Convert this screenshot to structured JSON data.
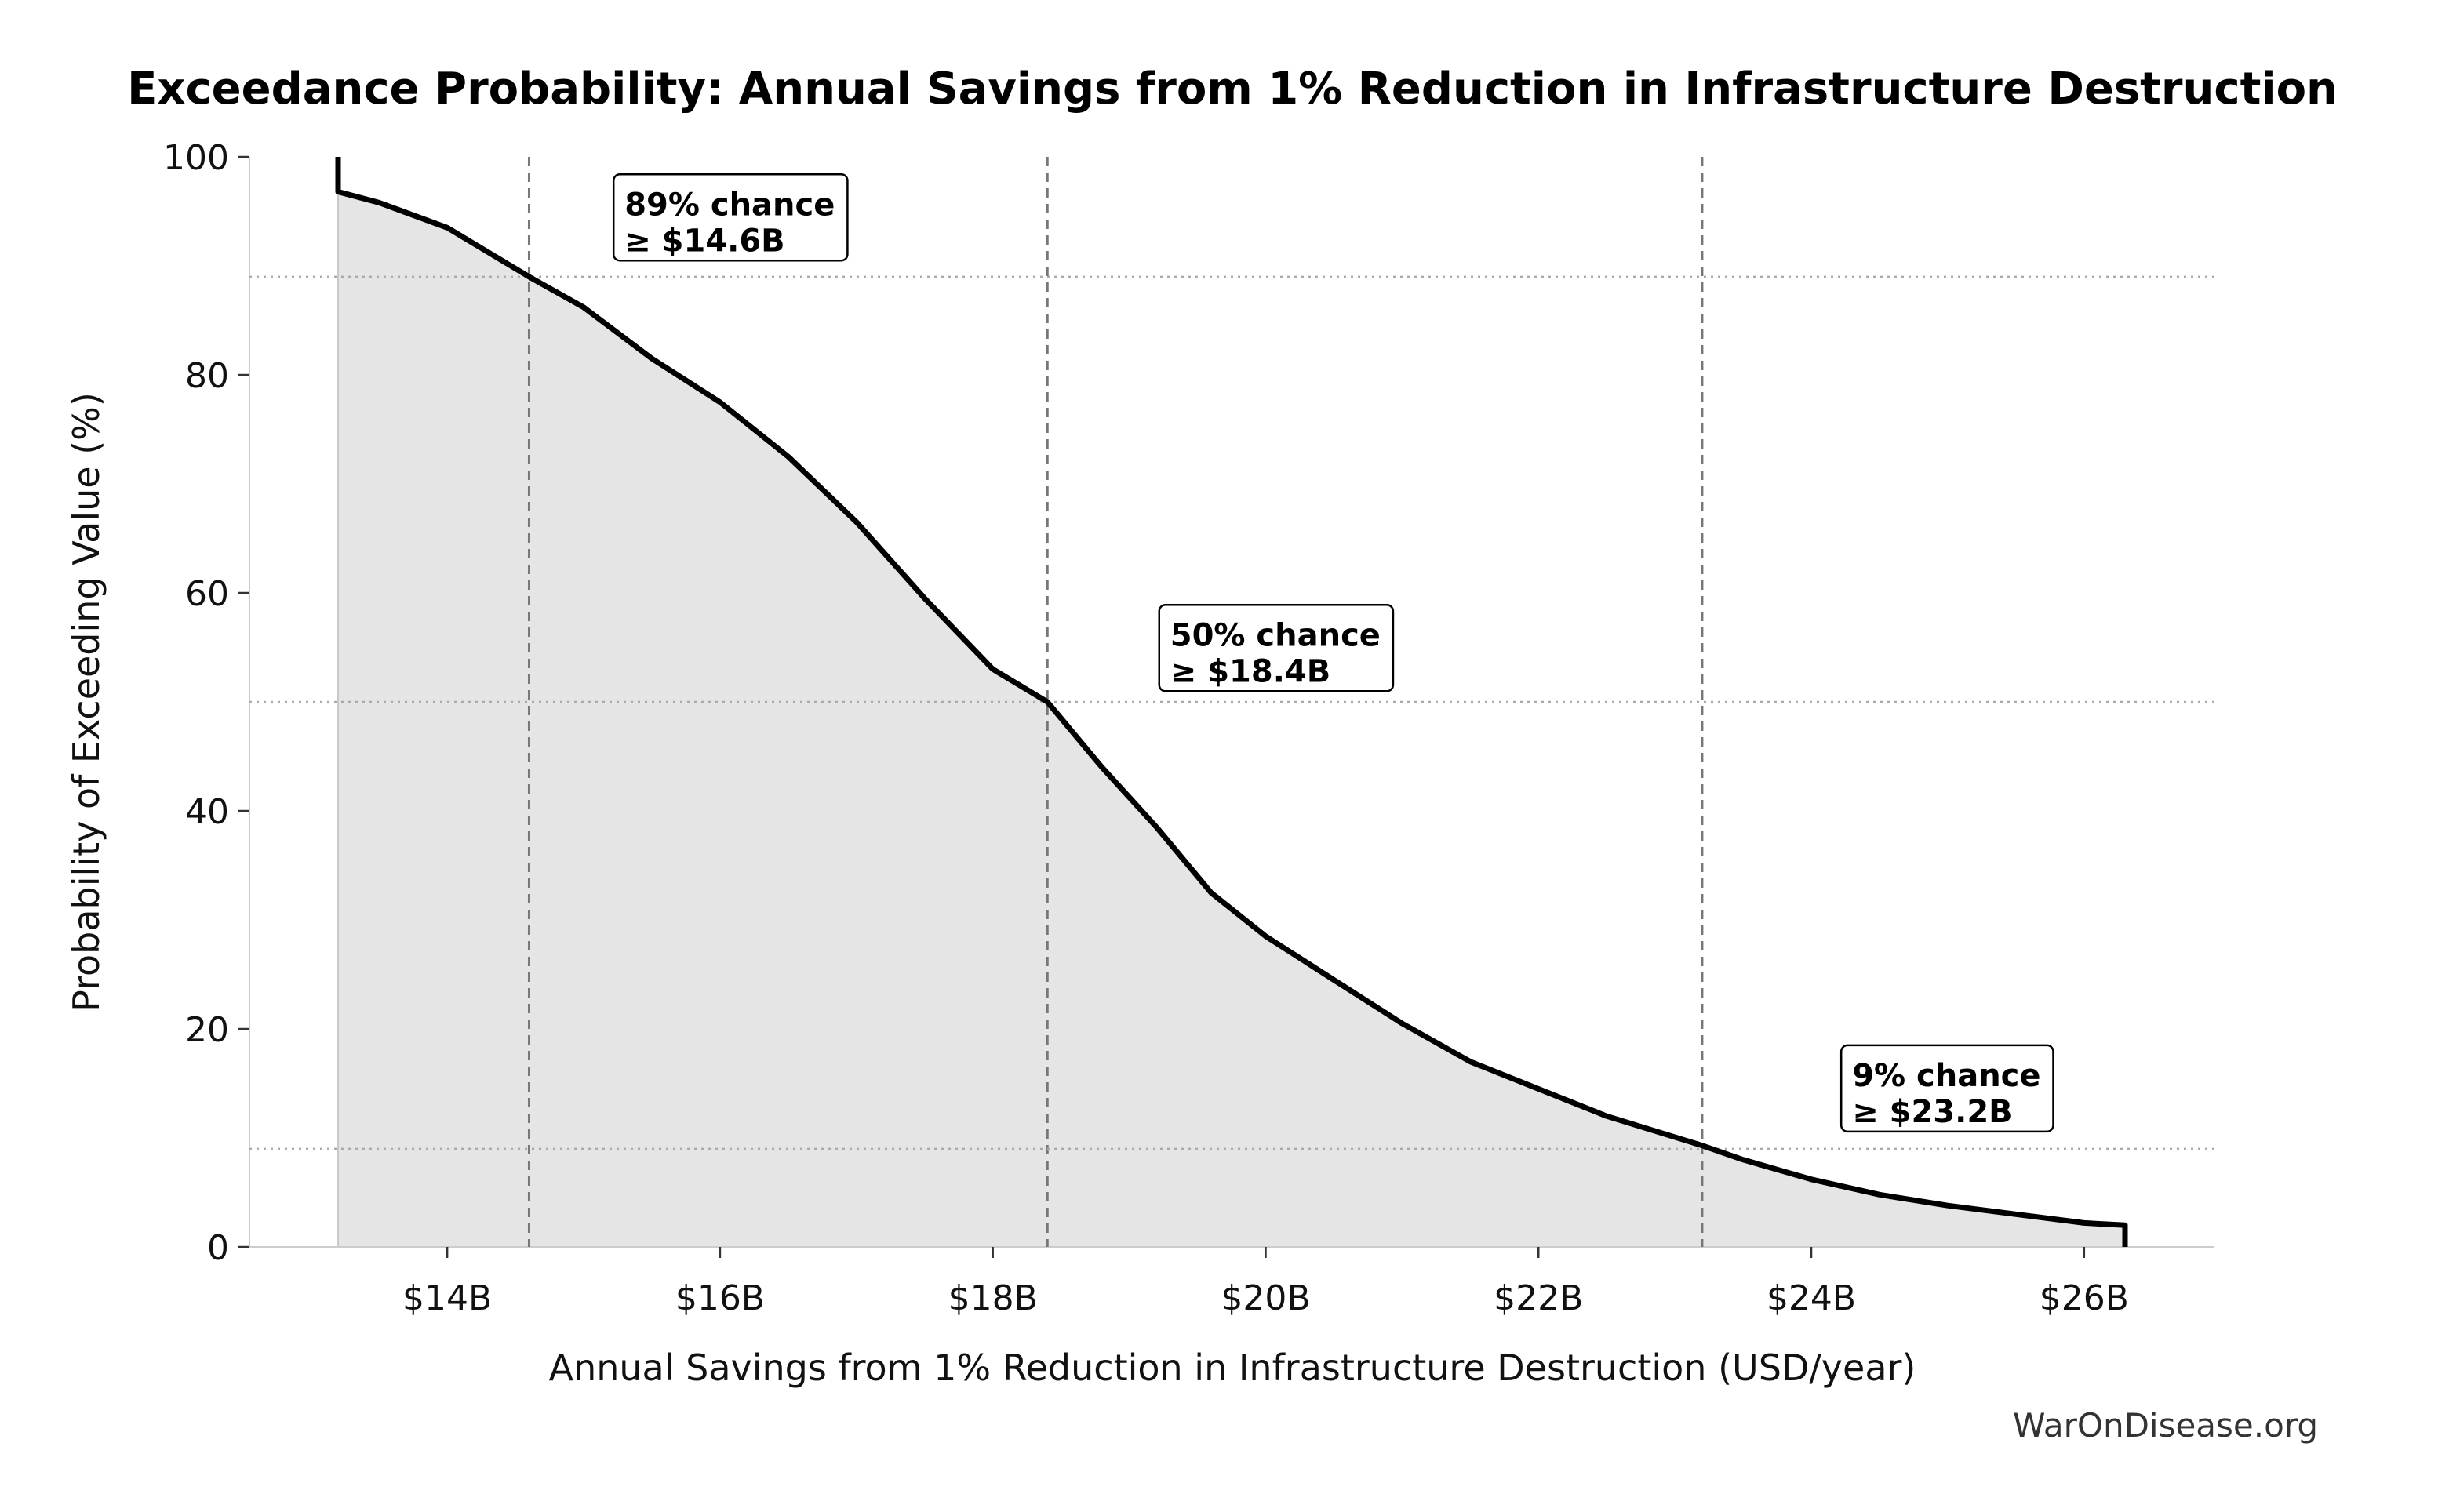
{
  "chart_data": {
    "type": "area",
    "title": "Exceedance Probability: Annual Savings from 1% Reduction in Infrastructure Destruction",
    "xlabel": "Annual Savings from 1% Reduction in Infrastructure Destruction (USD/year)",
    "ylabel": "Probability of Exceeding Value (%)",
    "x_unit": "USD billions",
    "xlim": [
      12.55,
      26.95
    ],
    "ylim": [
      0,
      100
    ],
    "x_ticks": [
      14,
      16,
      18,
      20,
      22,
      24,
      26
    ],
    "x_tick_labels": [
      "$14B",
      "$16B",
      "$18B",
      "$20B",
      "$22B",
      "$24B",
      "$26B"
    ],
    "y_ticks": [
      0,
      20,
      40,
      60,
      80,
      100
    ],
    "y_tick_labels": [
      "0",
      "20",
      "40",
      "60",
      "80",
      "100"
    ],
    "grid": false,
    "series": [
      {
        "x": [
          13.2,
          13.2,
          13.5,
          14.0,
          14.6,
          15.0,
          15.5,
          16.0,
          16.5,
          17.0,
          17.5,
          18.0,
          18.4,
          18.8,
          19.2,
          19.6,
          20.0,
          20.5,
          21.0,
          21.5,
          22.0,
          22.5,
          23.2,
          23.5,
          24.0,
          24.5,
          25.0,
          25.5,
          26.0,
          26.3
        ],
        "y": [
          100,
          96.8,
          95.8,
          93.5,
          89.0,
          86.2,
          81.5,
          77.5,
          72.5,
          66.5,
          59.5,
          53.0,
          50.0,
          44.0,
          38.5,
          32.5,
          28.5,
          24.5,
          20.5,
          17.0,
          14.5,
          12.0,
          9.3,
          8.0,
          6.2,
          4.8,
          3.8,
          3.0,
          2.2,
          2.0
        ]
      }
    ],
    "fill_color": "#e5e5e5",
    "line_color": "#000000",
    "reference_lines": [
      {
        "x": 14.6,
        "y": 89
      },
      {
        "x": 18.4,
        "y": 50
      },
      {
        "x": 23.2,
        "y": 9
      }
    ],
    "annotations": [
      {
        "line1": "89% chance",
        "line2": "≥ $14.6B",
        "x": 15.3,
        "y": 92.5
      },
      {
        "line1": "50% chance",
        "line2": "≥ $18.4B",
        "x": 19.3,
        "y": 53.0
      },
      {
        "line1": "9% chance",
        "line2": "≥ $23.2B",
        "x": 24.3,
        "y": 12.6
      }
    ]
  },
  "footer": {
    "watermark": "WarOnDisease.org"
  }
}
